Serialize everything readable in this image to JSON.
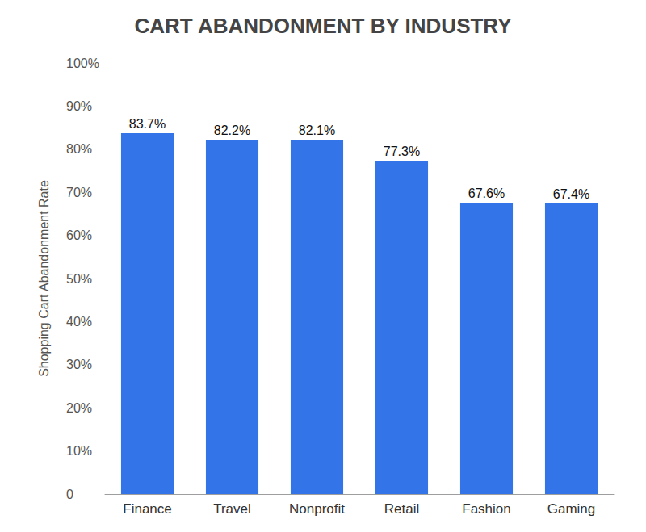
{
  "chart_data": {
    "type": "bar",
    "title": "CART ABANDONMENT BY INDUSTRY",
    "y_label": "Shopping Cart Abandonment Rate",
    "categories": [
      "Finance",
      "Travel",
      "Nonprofit",
      "Retail",
      "Fashion",
      "Gaming"
    ],
    "values": [
      83.7,
      82.2,
      82.1,
      77.3,
      67.6,
      67.4
    ],
    "value_labels": [
      "83.7%",
      "82.2%",
      "82.1%",
      "77.3%",
      "67.6%",
      "67.4%"
    ],
    "color": "#3374e8",
    "ylim": [
      0,
      100
    ],
    "yticks": [
      0,
      {
        "value": 10,
        "label": "10%"
      },
      {
        "value": 20,
        "label": "20%"
      },
      {
        "value": 30,
        "label": "30%"
      },
      {
        "value": 40,
        "label": "40%"
      },
      {
        "value": 50,
        "label": "50%"
      },
      {
        "value": 60,
        "label": "60%"
      },
      {
        "value": 70,
        "label": "70%"
      },
      {
        "value": 80,
        "label": "80%"
      },
      {
        "value": 90,
        "label": "90%"
      },
      {
        "value": 100,
        "label": "100%"
      }
    ],
    "grid": false,
    "data_labels": true
  }
}
